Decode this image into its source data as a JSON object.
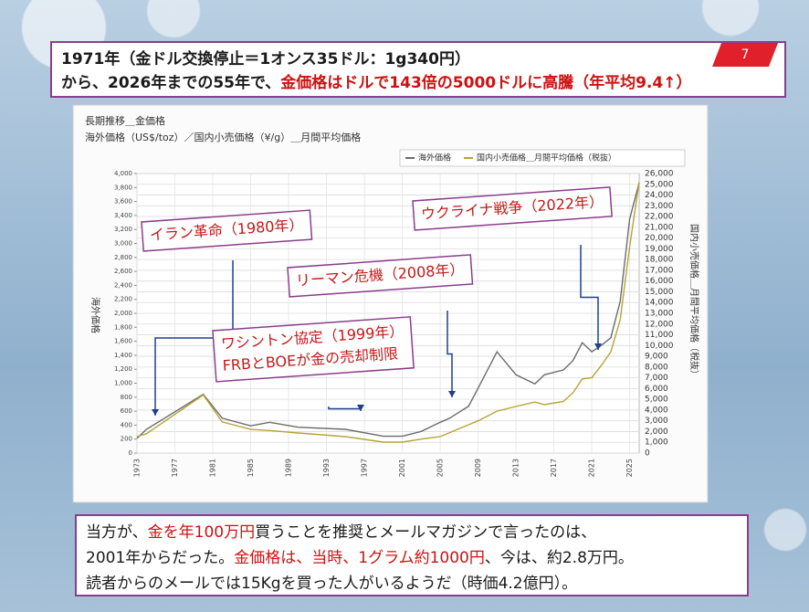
{
  "slide_number": "7",
  "headline": {
    "line1": "1971年（金ドル交換停止＝1オンス35ドル：1g340円）",
    "line2": [
      "から、2026年までの55年で、",
      "金価格はドルで143倍の5000ドルに高騰（年平均9.4↑）"
    ]
  },
  "footer": {
    "line1": [
      "当方が、",
      "金を年100万円",
      "買うことを推奨とメールマガジンで言ったのは、"
    ],
    "line2": [
      "2001年からだった。",
      "金価格は、当時、1グラム約1000円",
      "、今は、約2.8万円。"
    ],
    "line3": "読者からのメールでは15Kgを買った人がいるようだ（時価4.2億円）。"
  },
  "chart_data": {
    "type": "line",
    "title": "長期推移＿金価格",
    "subtitle": "海外価格（US$/toz）／国内小売価格（¥/g）＿月間平均価格",
    "y_label": "海外価格",
    "y2_label": "国内小売価格＿月間平均価格（税抜）",
    "x": [
      1973,
      1974,
      1980,
      1982,
      1985,
      1987,
      1990,
      1995,
      1999,
      2001,
      2003,
      2005,
      2006,
      2008,
      2009,
      2011,
      2013,
      2015,
      2016,
      2018,
      2019,
      2020,
      2021,
      2022,
      2023,
      2024,
      2025,
      2026
    ],
    "series": [
      {
        "name": "海外価格",
        "color": "#6b6b6b",
        "axis": "y",
        "values": [
          210,
          340,
          840,
          500,
          390,
          440,
          370,
          340,
          240,
          240,
          310,
          440,
          500,
          670,
          930,
          1450,
          1120,
          990,
          1120,
          1190,
          1320,
          1580,
          1450,
          1540,
          1650,
          2170,
          3350,
          3870
        ]
      },
      {
        "name": "国内小売価格＿月間平均価格（税抜）",
        "color": "#b5a33a",
        "axis": "y2",
        "values": [
          1530,
          1800,
          5400,
          2900,
          2200,
          2100,
          1870,
          1530,
          1020,
          1020,
          1300,
          1530,
          1900,
          2630,
          3000,
          3900,
          4330,
          4750,
          4500,
          4800,
          5600,
          6900,
          7000,
          8150,
          9400,
          12400,
          19200,
          25200
        ]
      }
    ],
    "xlim": [
      1973,
      2026
    ],
    "xticks": [
      1973,
      1977,
      1981,
      1985,
      1989,
      1993,
      1997,
      2001,
      2005,
      2009,
      2013,
      2017,
      2021,
      2025
    ],
    "ylim": [
      0,
      4000
    ],
    "yticks": [
      0,
      200,
      400,
      600,
      800,
      {
        "value": 1000,
        "label": "1,000"
      },
      {
        "value": 1200,
        "label": "1,200"
      },
      {
        "value": 1400,
        "label": "1,400"
      },
      {
        "value": 1600,
        "label": "1,600"
      },
      {
        "value": 1800,
        "label": "1,800"
      },
      {
        "value": 2000,
        "label": "2,000"
      },
      {
        "value": 2200,
        "label": "2,200"
      },
      {
        "value": 2400,
        "label": "2,400"
      },
      {
        "value": 2600,
        "label": "2,600"
      },
      {
        "value": 2800,
        "label": "2,800"
      },
      {
        "value": 3000,
        "label": "3,000"
      },
      {
        "value": 3200,
        "label": "3,200"
      },
      {
        "value": 3400,
        "label": "3,400"
      },
      {
        "value": 3600,
        "label": "3,600"
      },
      {
        "value": 3800,
        "label": "3,800"
      },
      {
        "value": 4000,
        "label": "4,000"
      }
    ],
    "y2lim": [
      0,
      26000
    ],
    "y2ticks": [
      0,
      {
        "value": 1000,
        "label": "1,000"
      },
      {
        "value": 2000,
        "label": "2,000"
      },
      {
        "value": 3000,
        "label": "3,000"
      },
      {
        "value": 4000,
        "label": "4,000"
      },
      {
        "value": 5000,
        "label": "5,000"
      },
      {
        "value": 6000,
        "label": "6,000"
      },
      {
        "value": 7000,
        "label": "7,000"
      },
      {
        "value": 8000,
        "label": "8,000"
      },
      {
        "value": 9000,
        "label": "9,000"
      },
      {
        "value": 10000,
        "label": "10,000"
      },
      {
        "value": 11000,
        "label": "11,000"
      },
      {
        "value": 12000,
        "label": "12,000"
      },
      {
        "value": 13000,
        "label": "13,000"
      },
      {
        "value": 14000,
        "label": "14,000"
      },
      {
        "value": 15000,
        "label": "15,000"
      },
      {
        "value": 16000,
        "label": "16,000"
      },
      {
        "value": 17000,
        "label": "17,000"
      },
      {
        "value": 18000,
        "label": "18,000"
      },
      {
        "value": 19000,
        "label": "19,000"
      },
      {
        "value": 20000,
        "label": "20,000"
      },
      {
        "value": 21000,
        "label": "21,000"
      },
      {
        "value": 22000,
        "label": "22,000"
      },
      {
        "value": 23000,
        "label": "23,000"
      },
      {
        "value": 24000,
        "label": "24,000"
      },
      {
        "value": 25000,
        "label": "25,000"
      },
      {
        "value": 26000,
        "label": "26,000"
      }
    ],
    "grid": true,
    "legend": "top-right",
    "annotations": [
      {
        "lines": [
          "イラン革命（1980年）"
        ]
      },
      {
        "lines": [
          "リーマン危機（2008年）"
        ]
      },
      {
        "lines": [
          "ウクライナ戦争（2022年）"
        ]
      },
      {
        "lines": [
          "ワシントン協定（1999年）",
          "FRBとBOEが金の売却制限"
        ]
      }
    ]
  }
}
